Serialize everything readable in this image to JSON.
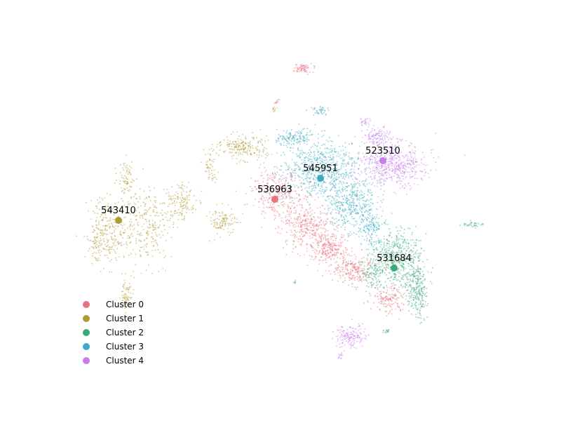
{
  "chart_data": {
    "type": "scatter",
    "title": "",
    "xlabel": "",
    "ylabel": "",
    "axes_visible": false,
    "grid": false,
    "legend_position": "bottom-left",
    "series": [
      {
        "name": "Cluster 0",
        "color": "#e8727f",
        "centroid": {
          "label": "536963",
          "x": 392,
          "y": 284
        },
        "regions": [
          {
            "x": 432,
            "y": 97,
            "spread": [
              12,
              5
            ],
            "n": 70
          },
          {
            "x": 395,
            "y": 145,
            "spread": [
              3,
              3
            ],
            "n": 10
          },
          {
            "x": 395,
            "y": 275,
            "spread": [
              30,
              30
            ],
            "n": 300
          },
          {
            "x": 435,
            "y": 320,
            "spread": [
              30,
              25
            ],
            "n": 320
          },
          {
            "x": 470,
            "y": 355,
            "spread": [
              25,
              18
            ],
            "n": 260
          },
          {
            "x": 505,
            "y": 385,
            "spread": [
              25,
              15
            ],
            "n": 220
          },
          {
            "x": 555,
            "y": 425,
            "spread": [
              20,
              15
            ],
            "n": 150
          }
        ]
      },
      {
        "name": "Cluster 1",
        "color": "#b09a35",
        "centroid": {
          "label": "543410",
          "x": 169,
          "y": 314
        },
        "regions": [
          {
            "x": 155,
            "y": 330,
            "spread": [
              25,
              40
            ],
            "n": 260
          },
          {
            "x": 210,
            "y": 320,
            "spread": [
              30,
              45
            ],
            "n": 260
          },
          {
            "x": 180,
            "y": 255,
            "spread": [
              10,
              20
            ],
            "n": 70
          },
          {
            "x": 255,
            "y": 290,
            "spread": [
              20,
              25
            ],
            "n": 140
          },
          {
            "x": 320,
            "y": 315,
            "spread": [
              15,
              15
            ],
            "n": 110
          },
          {
            "x": 345,
            "y": 210,
            "spread": [
              30,
              15
            ],
            "n": 210
          },
          {
            "x": 300,
            "y": 240,
            "spread": [
              8,
              20
            ],
            "n": 50
          },
          {
            "x": 180,
            "y": 420,
            "spread": [
              8,
              18
            ],
            "n": 70
          },
          {
            "x": 135,
            "y": 345,
            "spread": [
              6,
              20
            ],
            "n": 40
          },
          {
            "x": 390,
            "y": 155,
            "spread": [
              4,
              4
            ],
            "n": 10
          }
        ]
      },
      {
        "name": "Cluster 2",
        "color": "#3aa978",
        "centroid": {
          "label": "531684",
          "x": 562,
          "y": 382
        },
        "regions": [
          {
            "x": 565,
            "y": 370,
            "spread": [
              30,
              35
            ],
            "n": 500
          },
          {
            "x": 595,
            "y": 410,
            "spread": [
              12,
              35
            ],
            "n": 250
          },
          {
            "x": 530,
            "y": 390,
            "spread": [
              15,
              20
            ],
            "n": 100
          },
          {
            "x": 675,
            "y": 320,
            "spread": [
              12,
              4
            ],
            "n": 35
          },
          {
            "x": 550,
            "y": 472,
            "spread": [
              6,
              3
            ],
            "n": 15
          },
          {
            "x": 420,
            "y": 403,
            "spread": [
              2,
              3
            ],
            "n": 6
          }
        ]
      },
      {
        "name": "Cluster 3",
        "color": "#3aabc2",
        "centroid": {
          "label": "545951",
          "x": 457,
          "y": 254
        },
        "regions": [
          {
            "x": 455,
            "y": 240,
            "spread": [
              45,
              35
            ],
            "n": 650
          },
          {
            "x": 500,
            "y": 290,
            "spread": [
              30,
              35
            ],
            "n": 450
          },
          {
            "x": 420,
            "y": 195,
            "spread": [
              25,
              10
            ],
            "n": 130
          },
          {
            "x": 455,
            "y": 158,
            "spread": [
              12,
              5
            ],
            "n": 40
          },
          {
            "x": 530,
            "y": 325,
            "spread": [
              15,
              20
            ],
            "n": 150
          }
        ]
      },
      {
        "name": "Cluster 4",
        "color": "#c77ce8",
        "centroid": {
          "label": "523510",
          "x": 546,
          "y": 229
        },
        "regions": [
          {
            "x": 560,
            "y": 235,
            "spread": [
              40,
              25
            ],
            "n": 550
          },
          {
            "x": 540,
            "y": 195,
            "spread": [
              18,
              10
            ],
            "n": 120
          },
          {
            "x": 520,
            "y": 175,
            "spread": [
              6,
              6
            ],
            "n": 25
          },
          {
            "x": 500,
            "y": 480,
            "spread": [
              18,
              14
            ],
            "n": 150
          },
          {
            "x": 485,
            "y": 508,
            "spread": [
              4,
              4
            ],
            "n": 12
          }
        ]
      }
    ]
  }
}
